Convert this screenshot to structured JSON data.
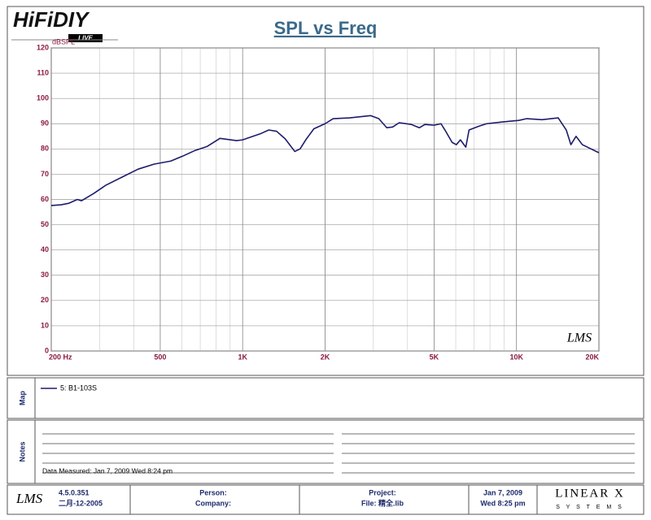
{
  "header": {
    "logo": "HiFiDIY",
    "logo_badge": "LIVE"
  },
  "chart_data": {
    "type": "line",
    "title": "SPL vs Freq",
    "y_label": "dBSPL",
    "watermark": "LMS",
    "log_x": true,
    "grid": true,
    "minor_grid": true,
    "xlim": [
      200,
      20000
    ],
    "xticks": [
      {
        "value": 200,
        "label": "200  Hz"
      },
      500,
      {
        "value": 1000,
        "label": "1K"
      },
      {
        "value": 2000,
        "label": "2K"
      },
      {
        "value": 5000,
        "label": "5K"
      },
      {
        "value": 10000,
        "label": "10K"
      },
      {
        "value": 20000,
        "label": "20K"
      }
    ],
    "ylim": [
      0,
      120
    ],
    "yticks": [
      0,
      10,
      20,
      30,
      40,
      50,
      60,
      70,
      80,
      90,
      100,
      110,
      120
    ],
    "x": [
      200,
      217,
      232,
      249,
      258,
      286,
      316,
      362,
      415,
      475,
      546,
      605,
      670,
      742,
      826,
      950,
      1000,
      1160,
      1245,
      1330,
      1430,
      1550,
      1620,
      1700,
      1820,
      2000,
      2140,
      2460,
      2930,
      3140,
      3360,
      3530,
      3730,
      4130,
      4420,
      4630,
      5000,
      5300,
      5480,
      5820,
      6030,
      6240,
      6530,
      6710,
      7280,
      7780,
      8900,
      10200,
      10900,
      12400,
      14200,
      15200,
      15800,
      16500,
      17400,
      20000
    ],
    "series": [
      {
        "name": "5: B1-103S",
        "color": "#1c1c6b",
        "values": [
          57.6,
          57.9,
          58.5,
          60,
          59.5,
          62.4,
          65.6,
          68.8,
          72,
          74,
          75.2,
          77.2,
          79.4,
          81,
          84.2,
          83.3,
          83.6,
          86,
          87.5,
          87,
          84,
          79,
          80,
          83.6,
          88,
          90,
          92,
          92.3,
          93.2,
          92,
          88.4,
          88.7,
          90.4,
          89.7,
          88.4,
          89.7,
          89.4,
          90,
          87.5,
          82.6,
          81.7,
          83.6,
          80.7,
          87.5,
          89,
          90,
          90.7,
          91.3,
          92,
          91.6,
          92.3,
          87.5,
          81.7,
          85,
          81.7,
          78.5
        ]
      }
    ]
  },
  "panels": {
    "map": "Map",
    "notes": "Notes"
  },
  "notes": {
    "data_measured": "Data Measured: Jan 7, 2009  Wed  8:24 pm"
  },
  "footer": {
    "logo": "LMS",
    "version": "4.5.0.351",
    "build_date": "二月-12-2005",
    "person": "Person:",
    "company": "Company:",
    "project": "Project:",
    "file": "File: 精全.lib",
    "date": "Jan  7, 2009",
    "time": "Wed  8:25 pm",
    "brand": "LINEAR X",
    "brand_sub": "S Y S T E M S"
  }
}
